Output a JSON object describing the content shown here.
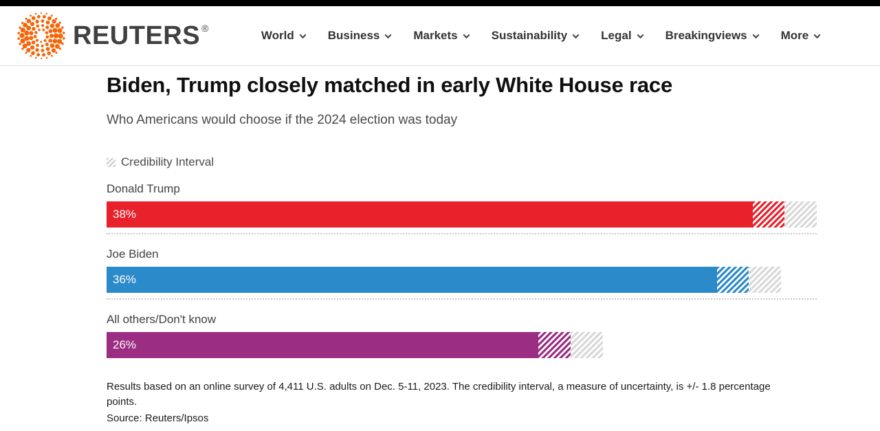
{
  "header": {
    "brand": "REUTERS",
    "registered": "®",
    "nav": [
      {
        "label": "World"
      },
      {
        "label": "Business"
      },
      {
        "label": "Markets"
      },
      {
        "label": "Sustainability"
      },
      {
        "label": "Legal"
      },
      {
        "label": "Breakingviews"
      },
      {
        "label": "More"
      }
    ]
  },
  "article": {
    "title": "Biden, Trump closely matched in early White House race",
    "subtitle": "Who Americans would choose if the 2024 election was today"
  },
  "chart_data": {
    "type": "bar",
    "orientation": "horizontal",
    "title": "Biden, Trump closely matched in early White House race",
    "subtitle": "Who Americans would choose if the 2024 election was today",
    "legend_label": "Credibility Interval",
    "categories": [
      "Donald Trump",
      "Joe Biden",
      "All others/Don't know"
    ],
    "values": [
      38,
      36,
      26
    ],
    "value_labels": [
      "38%",
      "36%",
      "26%"
    ],
    "credibility_interval": 1.8,
    "axis_max": 39.8,
    "bar_colors": [
      "#e8212b",
      "#2b8ac9",
      "#9b2d82"
    ],
    "hatch_gray": "#d8d8d8",
    "note": "Results based on an online survey of 4,411 U.S. adults on Dec. 5-11, 2023. The credibility interval, a measure of uncertainty, is +/- 1.8 percentage points.",
    "source": "Source: Reuters/Ipsos"
  },
  "colors": {
    "logo_orange": "#f5660b",
    "topbar_black": "#000000"
  }
}
